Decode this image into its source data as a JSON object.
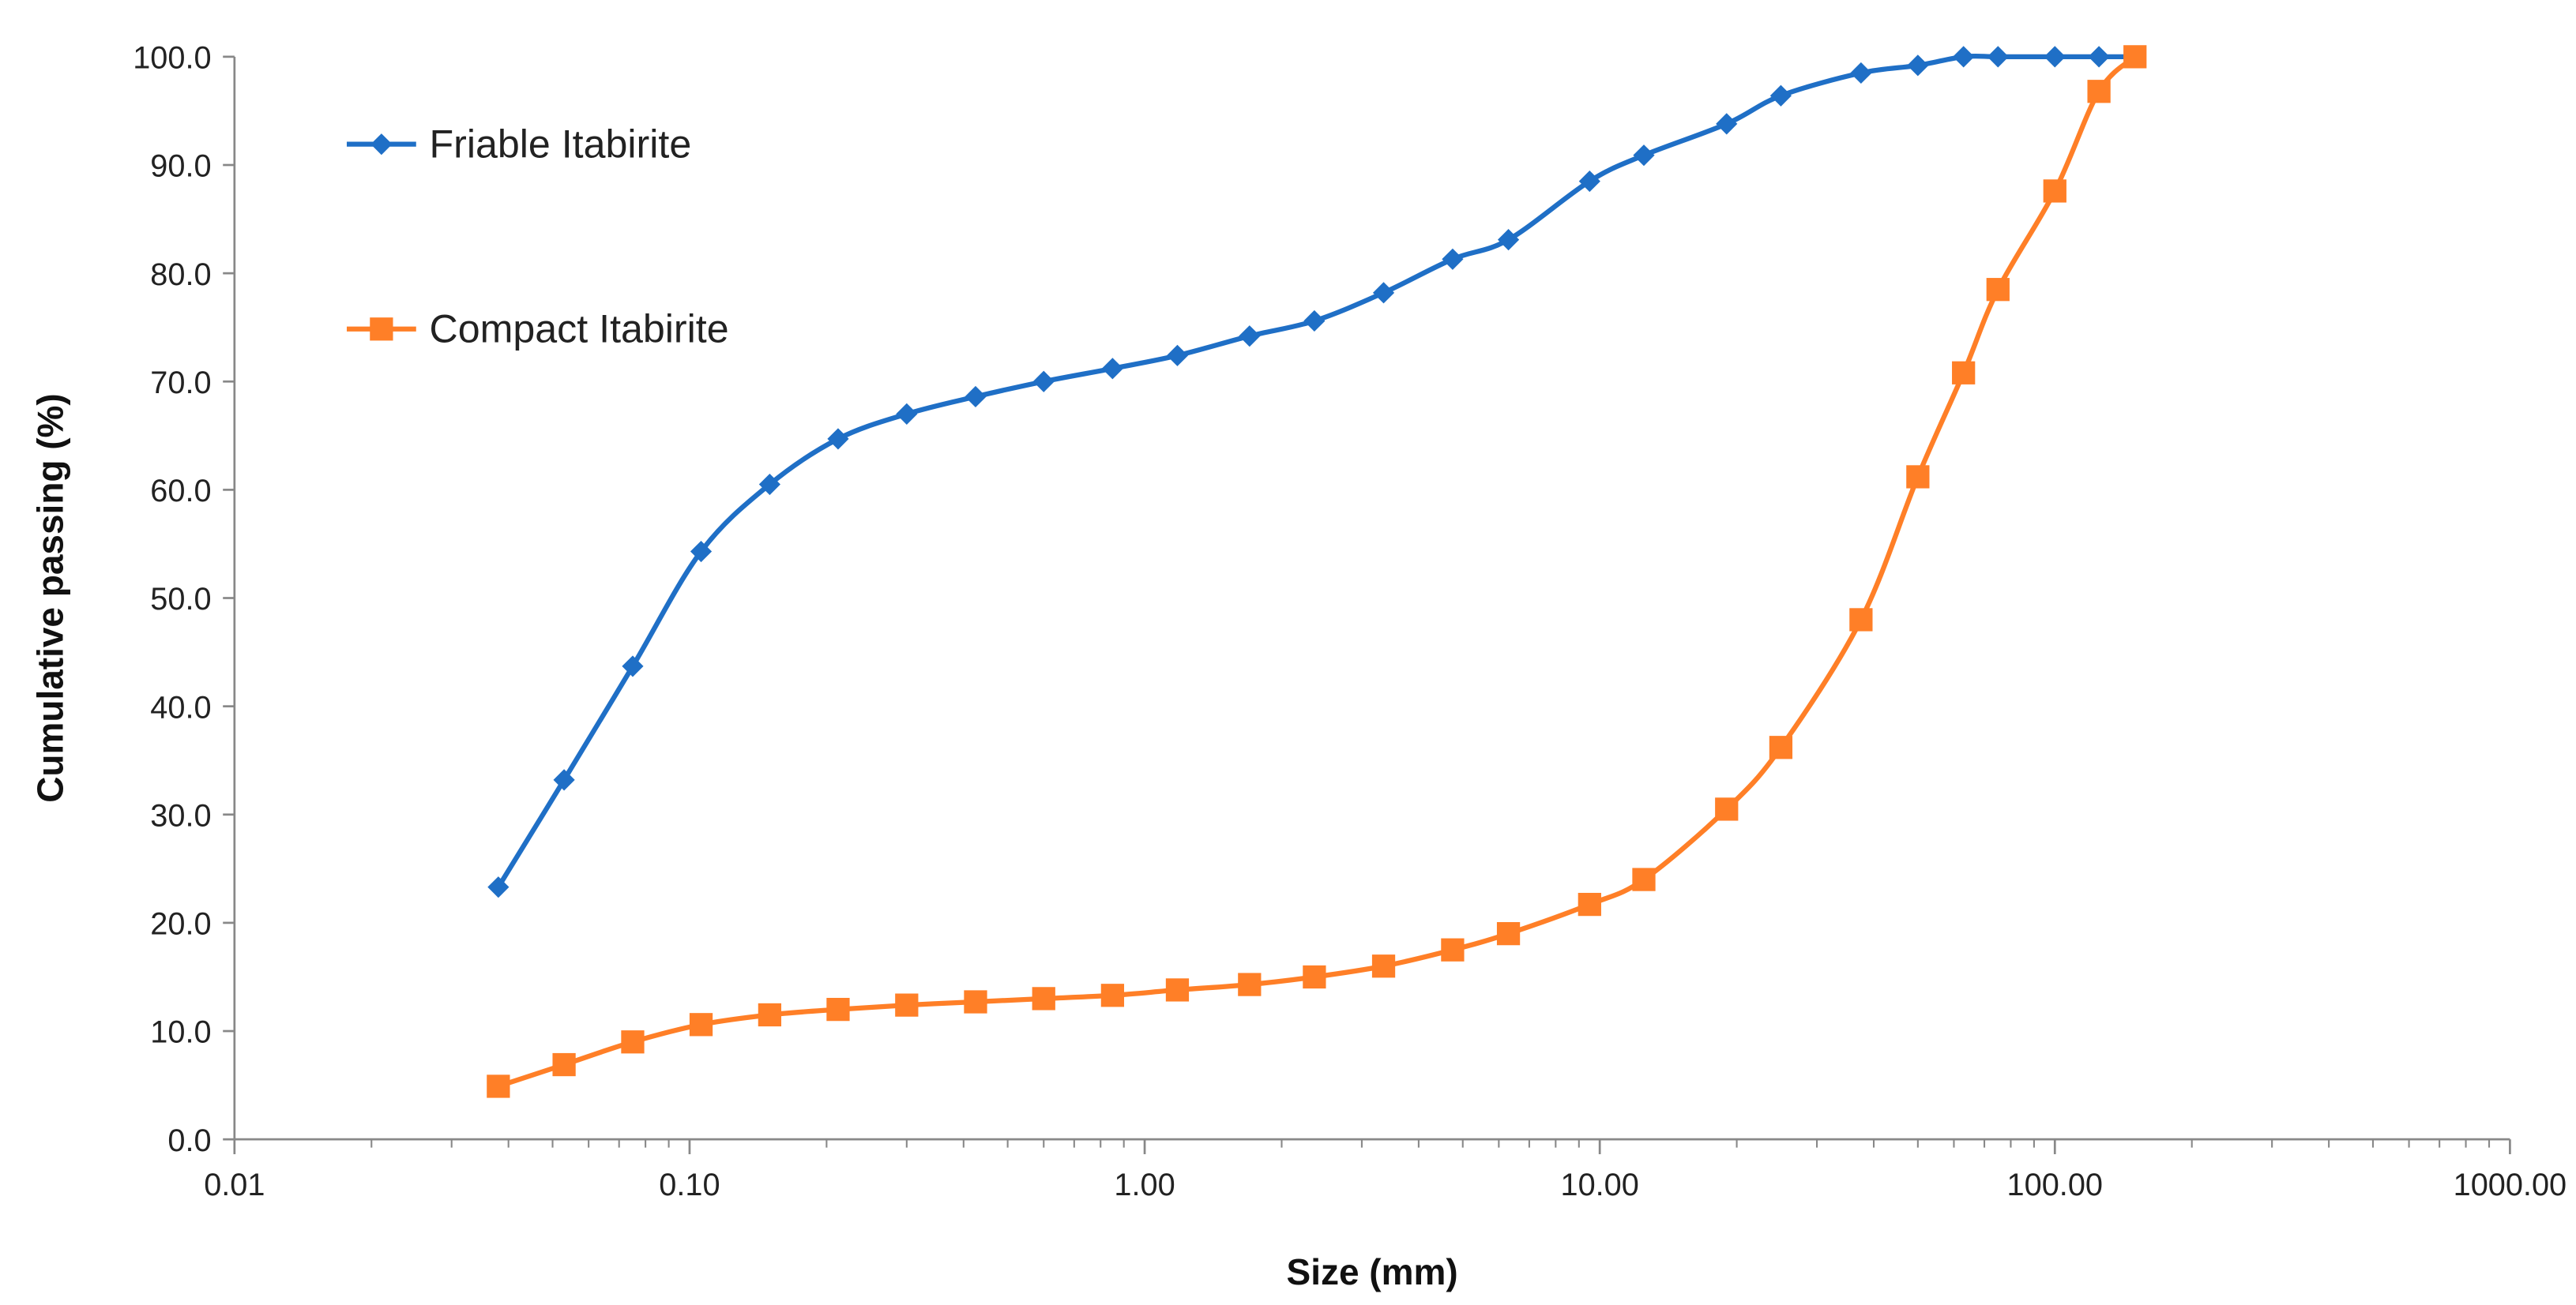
{
  "chart_data": {
    "type": "line",
    "title": "",
    "xlabel": "Size (mm)",
    "ylabel": "Cumulative passing (%)",
    "xscale": "log",
    "xlim": [
      0.01,
      1000
    ],
    "ylim": [
      0,
      100
    ],
    "xticks": [
      0.01,
      0.1,
      1,
      10,
      100,
      1000
    ],
    "xtick_labels": [
      "0.01",
      "0.10",
      "1.00",
      "10.00",
      "100.00",
      "1000.00"
    ],
    "yticks": [
      0,
      10,
      20,
      30,
      40,
      50,
      60,
      70,
      80,
      90,
      100
    ],
    "ytick_labels": [
      "0.0",
      "10.0",
      "20.0",
      "30.0",
      "40.0",
      "50.0",
      "60.0",
      "70.0",
      "80.0",
      "90.0",
      "100.0"
    ],
    "grid": false,
    "legend_position": "top-left",
    "x": [
      0.038,
      0.053,
      0.075,
      0.106,
      0.15,
      0.212,
      0.3,
      0.425,
      0.6,
      0.85,
      1.18,
      1.7,
      2.36,
      3.35,
      4.75,
      6.3,
      9.5,
      12.5,
      19,
      25,
      37.5,
      50,
      63,
      75,
      100,
      125,
      150
    ],
    "series": [
      {
        "name": "Friable Itabirite",
        "color": "#1f6fc6",
        "marker": "diamond",
        "values": [
          23.3,
          33.2,
          43.7,
          54.3,
          60.5,
          64.7,
          67.0,
          68.6,
          70.0,
          71.2,
          72.4,
          74.2,
          75.6,
          78.2,
          81.3,
          83.1,
          88.5,
          90.9,
          93.8,
          96.4,
          98.5,
          99.2,
          100,
          100,
          100,
          100,
          100
        ]
      },
      {
        "name": "Compact Itabirite",
        "color": "#ff7f27",
        "marker": "square",
        "values": [
          4.9,
          6.9,
          9.0,
          10.6,
          11.5,
          12.0,
          12.4,
          12.7,
          13.0,
          13.3,
          13.8,
          14.3,
          15.0,
          16.0,
          17.5,
          19.0,
          21.7,
          24.0,
          30.5,
          36.2,
          48.0,
          61.2,
          70.8,
          78.5,
          87.6,
          96.8,
          100
        ]
      }
    ]
  }
}
